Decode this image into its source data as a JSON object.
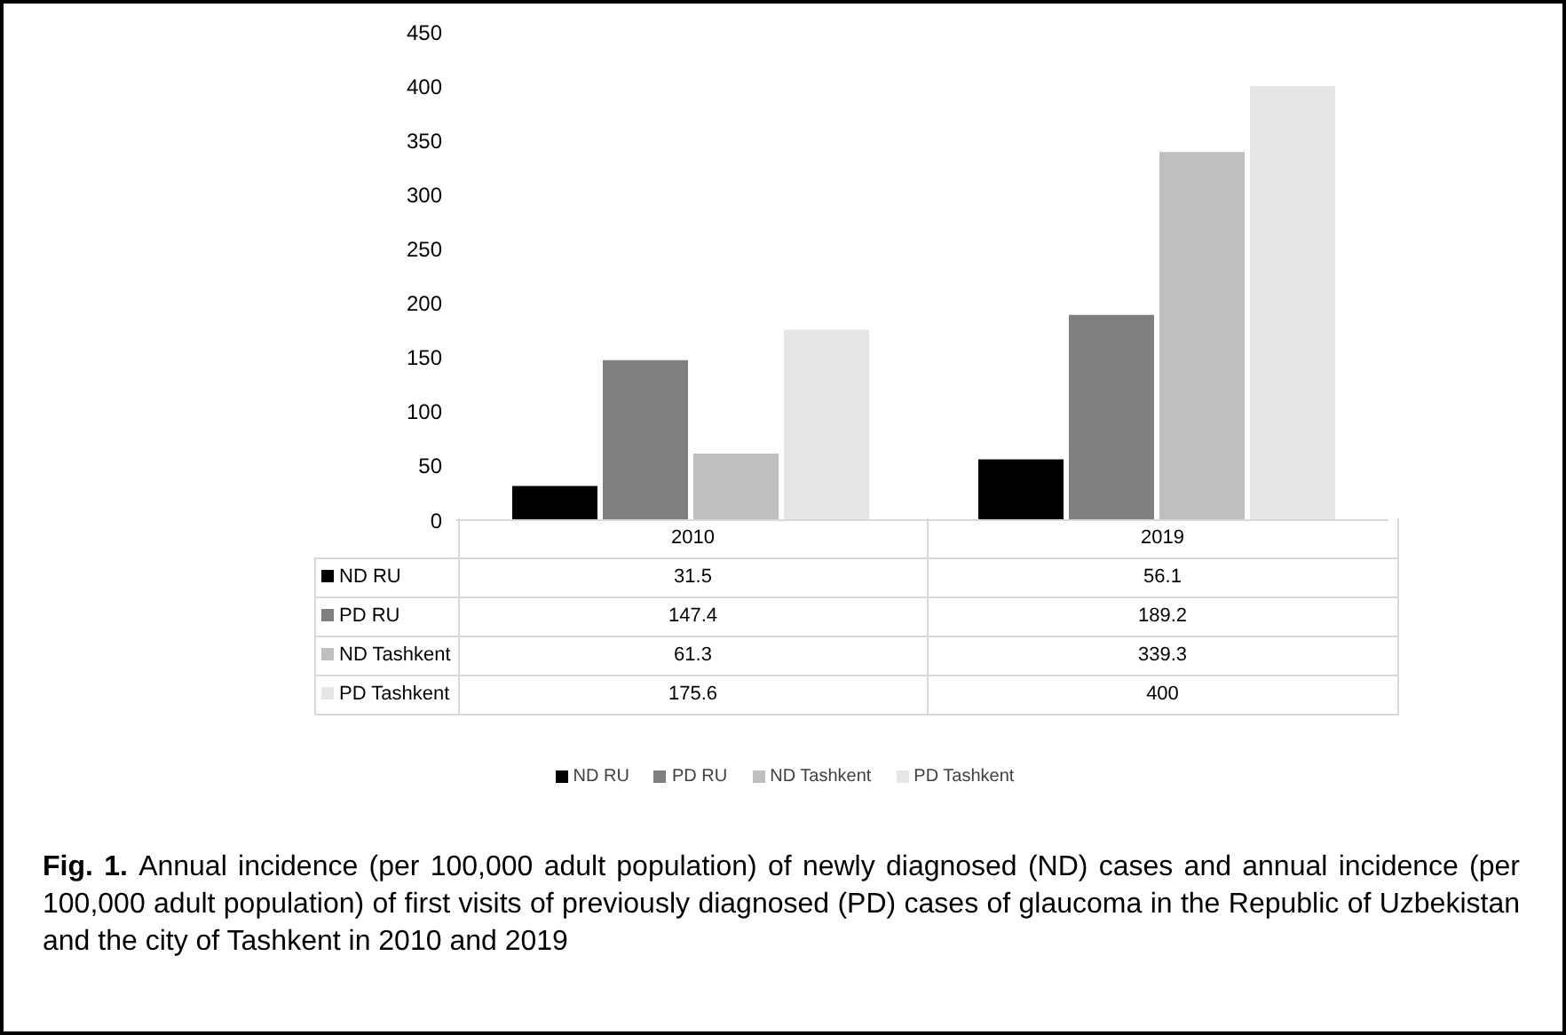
{
  "chart_data": {
    "type": "bar",
    "categories": [
      "2010",
      "2019"
    ],
    "series": [
      {
        "name": "ND RU",
        "color": "#000000",
        "values": [
          31.5,
          56.1
        ]
      },
      {
        "name": "PD RU",
        "color": "#7f7f7f",
        "values": [
          147.4,
          189.2
        ]
      },
      {
        "name": "ND Tashkent",
        "color": "#bfbfbf",
        "values": [
          61.3,
          339.3
        ]
      },
      {
        "name": "PD Tashkent",
        "color": "#e6e6e6",
        "values": [
          175.6,
          400
        ]
      }
    ],
    "ylim": [
      0,
      450
    ],
    "yticks": [
      0,
      50,
      100,
      150,
      200,
      250,
      300,
      350,
      400,
      450
    ],
    "grid": false,
    "legend": "bottom",
    "data_labels": true,
    "annotations": [
      "Fig. 1.",
      "Annual incidence (per 100,000 adult population) of newly diagnosed (ND) cases and annual incidence (per 100,000 adult population) of first visits of previously diagnosed (PD) cases of glaucoma in the Republic of Uzbekistan and the city of Tashkent in 2010 and 2019"
    ]
  }
}
